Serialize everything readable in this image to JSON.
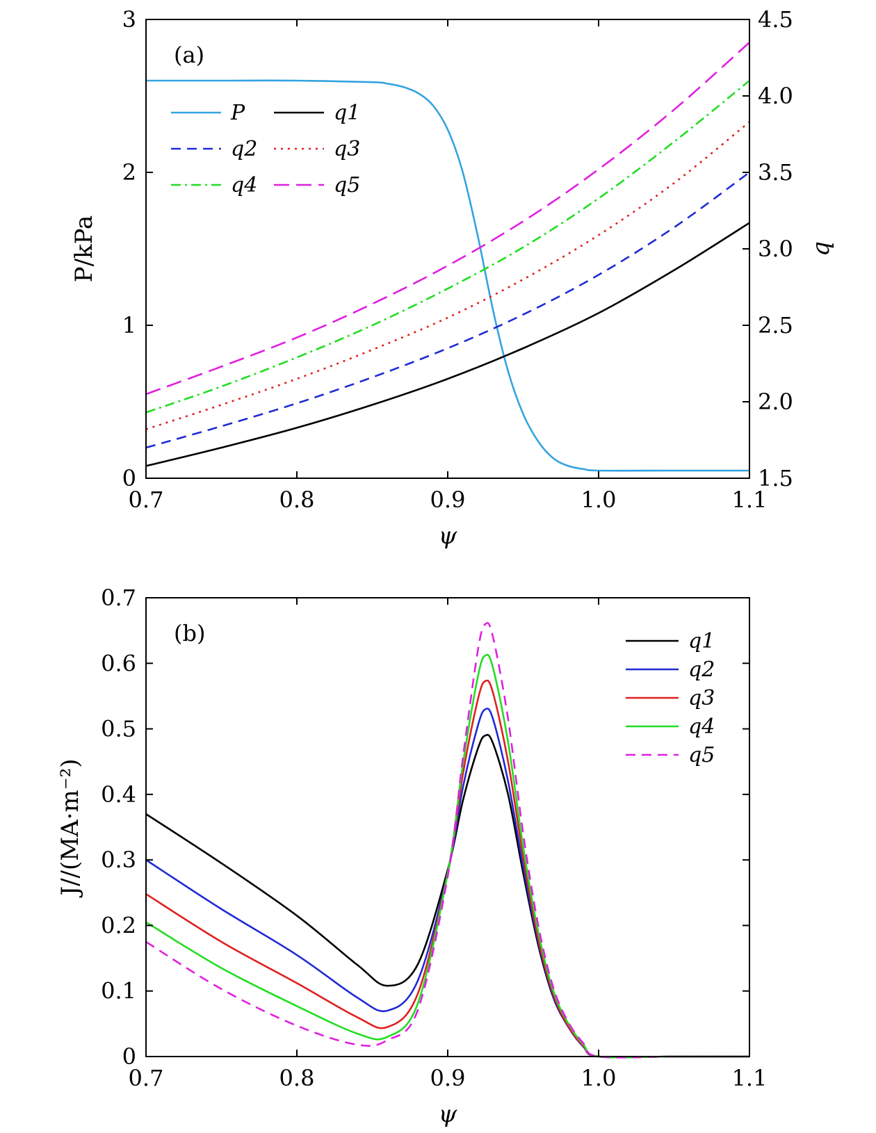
{
  "chart_data": [
    {
      "id": "a",
      "type": "line",
      "panel_label": "(a)",
      "xlabel": "ψ",
      "ylabel": "P/kPa",
      "y2label": "q",
      "xlim": [
        0.7,
        1.1
      ],
      "ylim": [
        0,
        3
      ],
      "y2lim": [
        1.5,
        4.5
      ],
      "xticks": [
        "0.7",
        "0.8",
        "0.9",
        "1.0",
        "1.1"
      ],
      "yticks": [
        "0",
        "1",
        "2",
        "3"
      ],
      "y2ticks": [
        "1.5",
        "2.0",
        "2.5",
        "3.0",
        "3.5",
        "4.0",
        "4.5"
      ],
      "grid": false,
      "legend_position": "top-left",
      "series": [
        {
          "name": "P",
          "axis": "left",
          "color": "#33a3e0",
          "dash": "solid",
          "x": [
            0.7,
            0.75,
            0.8,
            0.85,
            0.86,
            0.87,
            0.88,
            0.89,
            0.9,
            0.91,
            0.92,
            0.93,
            0.94,
            0.95,
            0.96,
            0.97,
            0.98,
            0.99,
            1.0,
            1.05,
            1.1
          ],
          "y": [
            2.6,
            2.6,
            2.6,
            2.59,
            2.58,
            2.56,
            2.52,
            2.44,
            2.28,
            2.0,
            1.58,
            1.1,
            0.7,
            0.42,
            0.24,
            0.13,
            0.08,
            0.06,
            0.05,
            0.05,
            0.05
          ]
        },
        {
          "name": "q1",
          "axis": "right",
          "color": "#000000",
          "dash": "solid",
          "x": [
            0.7,
            0.75,
            0.8,
            0.85,
            0.9,
            0.95,
            1.0,
            1.05,
            1.1
          ],
          "y": [
            1.58,
            1.7,
            1.83,
            1.98,
            2.15,
            2.35,
            2.58,
            2.86,
            3.17
          ]
        },
        {
          "name": "q2",
          "axis": "right",
          "color": "#1f2bd4",
          "dash": "dashed",
          "x": [
            0.7,
            0.75,
            0.8,
            0.85,
            0.9,
            0.95,
            1.0,
            1.05,
            1.1
          ],
          "y": [
            1.7,
            1.84,
            1.99,
            2.16,
            2.35,
            2.57,
            2.83,
            3.14,
            3.5
          ]
        },
        {
          "name": "q3",
          "axis": "right",
          "color": "#e02020",
          "dash": "dotted",
          "x": [
            0.7,
            0.75,
            0.8,
            0.85,
            0.9,
            0.95,
            1.0,
            1.05,
            1.1
          ],
          "y": [
            1.82,
            1.98,
            2.15,
            2.34,
            2.55,
            2.8,
            3.09,
            3.43,
            3.83
          ]
        },
        {
          "name": "q4",
          "axis": "right",
          "color": "#22dd22",
          "dash": "dashdot",
          "x": [
            0.7,
            0.75,
            0.8,
            0.85,
            0.9,
            0.95,
            1.0,
            1.05,
            1.1
          ],
          "y": [
            1.93,
            2.1,
            2.29,
            2.5,
            2.74,
            3.01,
            3.33,
            3.7,
            4.1
          ]
        },
        {
          "name": "q5",
          "axis": "right",
          "color": "#e020e0",
          "dash": "longdash",
          "x": [
            0.7,
            0.75,
            0.8,
            0.85,
            0.9,
            0.95,
            1.0,
            1.05,
            1.1
          ],
          "y": [
            2.05,
            2.23,
            2.42,
            2.64,
            2.89,
            3.18,
            3.52,
            3.91,
            4.35
          ]
        }
      ],
      "legend_entries": [
        {
          "label": "P"
        },
        {
          "label": "q1"
        },
        {
          "label": "q2"
        },
        {
          "label": "q3"
        },
        {
          "label": "q4"
        },
        {
          "label": "q5"
        }
      ]
    },
    {
      "id": "b",
      "type": "line",
      "panel_label": "(b)",
      "xlabel": "ψ",
      "ylabel": "J//(MA·m⁻²)",
      "xlim": [
        0.7,
        1.1
      ],
      "ylim": [
        0,
        0.7
      ],
      "xticks": [
        "0.7",
        "0.8",
        "0.9",
        "1.0",
        "1.1"
      ],
      "yticks": [
        "0",
        "0.1",
        "0.2",
        "0.3",
        "0.4",
        "0.5",
        "0.6",
        "0.7"
      ],
      "grid": false,
      "legend_position": "top-right",
      "series": [
        {
          "name": "q1",
          "color": "#000000",
          "dash": "solid",
          "x": [
            0.7,
            0.75,
            0.8,
            0.84,
            0.86,
            0.88,
            0.9,
            0.91,
            0.92,
            0.925,
            0.93,
            0.94,
            0.95,
            0.96,
            0.97,
            0.98,
            0.99,
            1.0,
            1.05,
            1.1
          ],
          "y": [
            0.37,
            0.295,
            0.215,
            0.14,
            0.108,
            0.14,
            0.285,
            0.39,
            0.47,
            0.49,
            0.478,
            0.4,
            0.28,
            0.17,
            0.09,
            0.045,
            0.015,
            0.0,
            0.0,
            0.0
          ]
        },
        {
          "name": "q2",
          "color": "#1f2bd4",
          "dash": "solid",
          "x": [
            0.7,
            0.75,
            0.8,
            0.84,
            0.86,
            0.88,
            0.9,
            0.91,
            0.92,
            0.925,
            0.93,
            0.94,
            0.95,
            0.96,
            0.97,
            0.98,
            0.99,
            1.0,
            1.05,
            1.1
          ],
          "y": [
            0.3,
            0.225,
            0.155,
            0.09,
            0.07,
            0.115,
            0.28,
            0.41,
            0.505,
            0.53,
            0.515,
            0.42,
            0.29,
            0.175,
            0.092,
            0.045,
            0.015,
            0.0,
            0.0,
            0.0
          ]
        },
        {
          "name": "q3",
          "color": "#e02020",
          "dash": "solid",
          "x": [
            0.7,
            0.75,
            0.8,
            0.84,
            0.86,
            0.88,
            0.9,
            0.91,
            0.92,
            0.925,
            0.93,
            0.94,
            0.95,
            0.96,
            0.97,
            0.98,
            0.99,
            1.0,
            1.05,
            1.1
          ],
          "y": [
            0.248,
            0.175,
            0.112,
            0.06,
            0.045,
            0.095,
            0.28,
            0.43,
            0.545,
            0.573,
            0.555,
            0.45,
            0.305,
            0.18,
            0.095,
            0.046,
            0.016,
            0.0,
            0.0,
            0.0
          ]
        },
        {
          "name": "q4",
          "color": "#22dd22",
          "dash": "solid",
          "x": [
            0.7,
            0.75,
            0.8,
            0.84,
            0.86,
            0.88,
            0.9,
            0.91,
            0.92,
            0.925,
            0.93,
            0.94,
            0.95,
            0.96,
            0.97,
            0.98,
            0.99,
            1.0,
            1.05,
            1.1
          ],
          "y": [
            0.205,
            0.135,
            0.077,
            0.035,
            0.03,
            0.08,
            0.28,
            0.445,
            0.58,
            0.612,
            0.593,
            0.48,
            0.32,
            0.19,
            0.1,
            0.05,
            0.018,
            0.0,
            0.0,
            0.0
          ]
        },
        {
          "name": "q5",
          "color": "#e020e0",
          "dash": "dashed",
          "x": [
            0.7,
            0.75,
            0.8,
            0.84,
            0.86,
            0.88,
            0.9,
            0.91,
            0.92,
            0.925,
            0.93,
            0.94,
            0.95,
            0.96,
            0.97,
            0.98,
            0.99,
            1.0,
            1.05,
            1.1
          ],
          "y": [
            0.175,
            0.103,
            0.047,
            0.018,
            0.025,
            0.07,
            0.275,
            0.455,
            0.62,
            0.66,
            0.64,
            0.515,
            0.34,
            0.2,
            0.105,
            0.052,
            0.02,
            0.0,
            0.0,
            0.0
          ]
        }
      ],
      "legend_entries": [
        {
          "label": "q1"
        },
        {
          "label": "q2"
        },
        {
          "label": "q3"
        },
        {
          "label": "q4"
        },
        {
          "label": "q5"
        }
      ]
    }
  ]
}
